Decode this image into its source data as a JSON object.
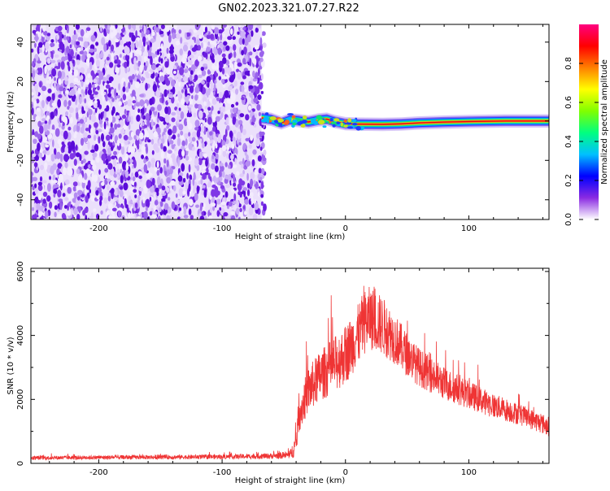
{
  "title": "GN02.2023.321.07.27.R22",
  "chart_data": [
    {
      "type": "heatmap",
      "xlabel": "Height of straight line (km)",
      "ylabel": "Frequency (Hz)",
      "xlim": [
        -255,
        165
      ],
      "ylim": [
        -50,
        49
      ],
      "xticks": [
        -200,
        -100,
        0,
        100
      ],
      "xtick_labels": [
        "-200",
        "-100",
        "0",
        "100"
      ],
      "yticks": [
        -40,
        -20,
        0,
        20,
        40
      ],
      "ytick_labels": [
        "-40",
        "-20",
        "0",
        "20",
        "40"
      ],
      "noise_region_x": [
        -255,
        -68
      ],
      "signal_region_x": [
        -68,
        165
      ],
      "signal_ridge": [
        [
          -68,
          1.5
        ],
        [
          -60,
          0.8
        ],
        [
          -52,
          -1.0
        ],
        [
          -45,
          0.6
        ],
        [
          -38,
          0.2
        ],
        [
          -30,
          -0.5
        ],
        [
          -22,
          0.5
        ],
        [
          -15,
          0.9
        ],
        [
          -8,
          -0.4
        ],
        [
          0,
          -1.4
        ],
        [
          10,
          -1.6
        ],
        [
          30,
          -1.7
        ],
        [
          45,
          -1.5
        ],
        [
          60,
          -1.0
        ],
        [
          80,
          -0.6
        ],
        [
          100,
          -0.3
        ],
        [
          130,
          0.0
        ],
        [
          165,
          0.0
        ]
      ],
      "grid": false,
      "colorbar": {
        "label": "Normalized spectral amplitude",
        "range": [
          0,
          1
        ],
        "ticks": [
          0.0,
          0.2,
          0.4,
          0.6,
          0.8
        ],
        "tick_labels": [
          "0.0",
          "0.2",
          "0.4",
          "0.6",
          "0.8"
        ],
        "colors": [
          "#ffffff",
          "#8a2be2",
          "#0000ff",
          "#00c0ff",
          "#00ff80",
          "#80ff00",
          "#ffff00",
          "#ff8000",
          "#ff0000",
          "#ff0080"
        ]
      }
    },
    {
      "type": "line",
      "xlabel": "Height of straight line (km)",
      "ylabel": "SNR (10 * v/v)",
      "xlim": [
        -255,
        165
      ],
      "ylim": [
        0,
        6100
      ],
      "xticks": [
        -200,
        -100,
        0,
        100
      ],
      "xtick_labels": [
        "-200",
        "-100",
        "0",
        "100"
      ],
      "yticks": [
        0,
        2000,
        4000,
        6000
      ],
      "ytick_labels": [
        "0",
        "2000",
        "4000",
        "6000"
      ],
      "color": "#ef3434",
      "grid": false,
      "series": [
        {
          "x": [
            -255,
            -200,
            -150,
            -100,
            -60,
            -45,
            -40,
            -38,
            -30,
            -20,
            -10,
            0,
            10,
            15,
            20,
            30,
            40,
            50,
            60,
            80,
            100,
            120,
            140,
            165
          ],
          "y": [
            170,
            185,
            195,
            205,
            230,
            260,
            600,
            1500,
            2300,
            2750,
            3050,
            3400,
            4000,
            4400,
            4550,
            4300,
            3900,
            3400,
            3000,
            2500,
            2150,
            1800,
            1550,
            1150
          ],
          "spread": [
            80,
            80,
            85,
            90,
            110,
            150,
            500,
            700,
            900,
            1000,
            1100,
            1150,
            1200,
            1250,
            1250,
            1150,
            1000,
            850,
            750,
            650,
            550,
            480,
            420,
            380
          ]
        }
      ]
    }
  ]
}
